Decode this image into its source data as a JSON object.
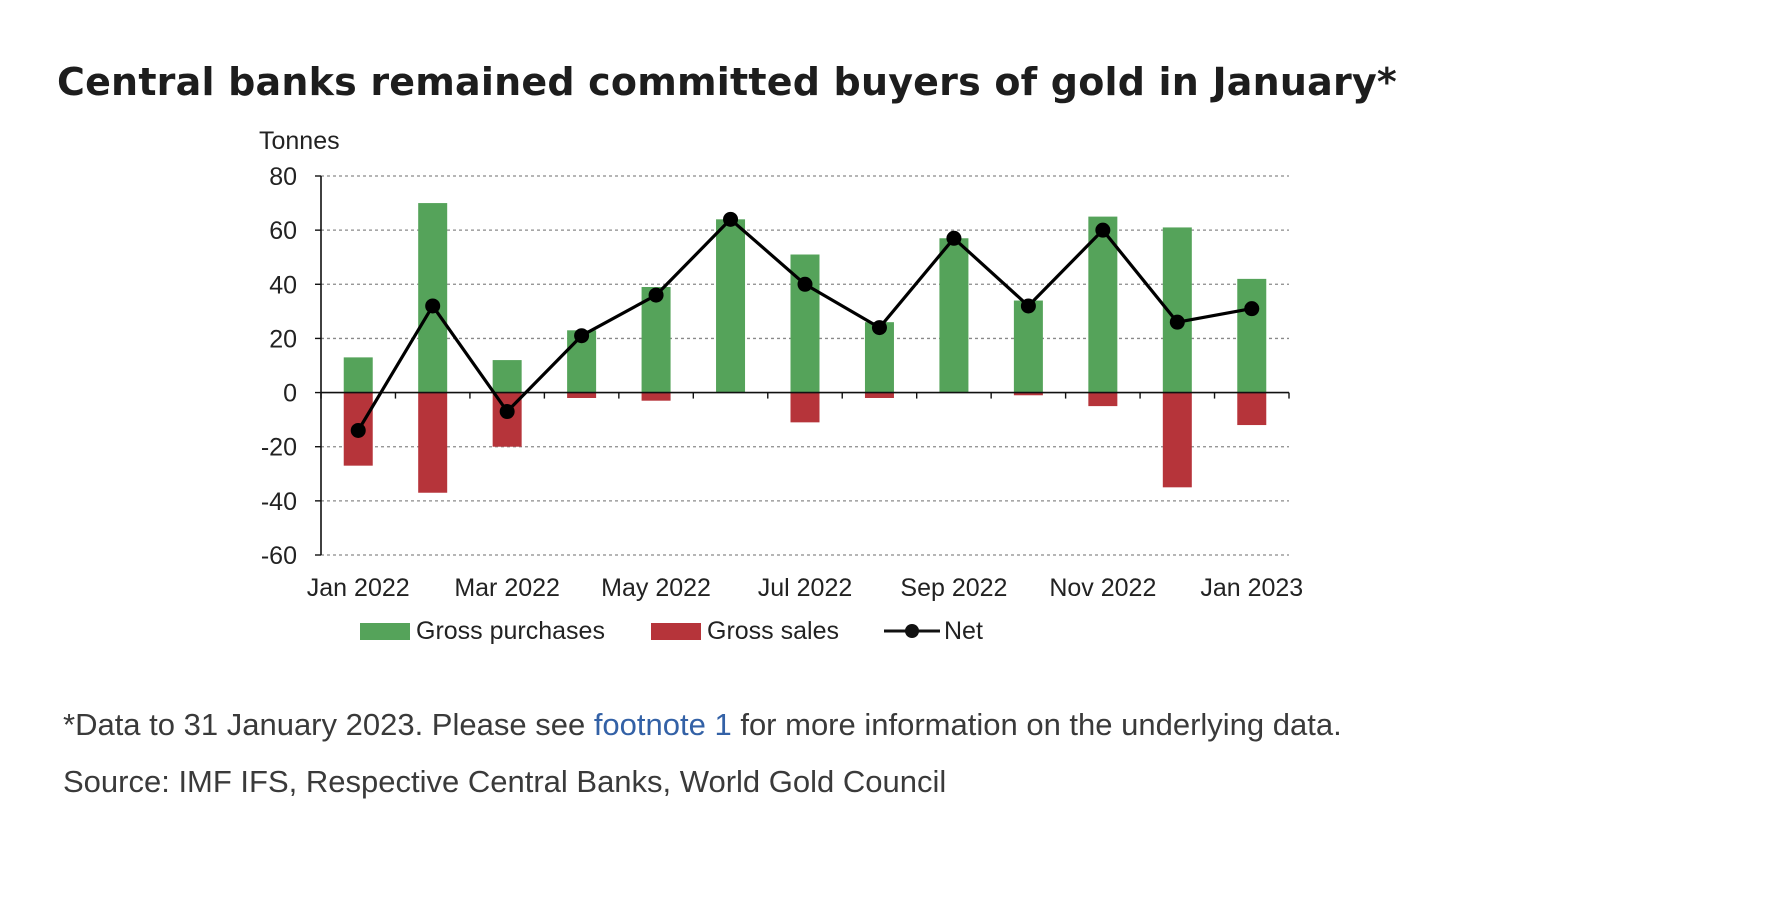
{
  "title": "Central banks remained committed buyers of gold in January*",
  "chart_data": {
    "type": "bar",
    "ylabel": "Tonnes",
    "ylim": [
      -60,
      80
    ],
    "yticks": [
      80,
      60,
      40,
      20,
      0,
      -20,
      -40,
      -60
    ],
    "grid": true,
    "categories": [
      "Jan 2022",
      "Feb 2022",
      "Mar 2022",
      "Apr 2022",
      "May 2022",
      "Jun 2022",
      "Jul 2022",
      "Aug 2022",
      "Sep 2022",
      "Oct 2022",
      "Nov 2022",
      "Dec 2022",
      "Jan 2023"
    ],
    "xtick_labels": [
      "Jan 2022",
      "Mar 2022",
      "May 2022",
      "Jul 2022",
      "Sep 2022",
      "Nov 2022",
      "Jan 2023"
    ],
    "series": [
      {
        "name": "Gross purchases",
        "type": "bar",
        "color": "#55a35a",
        "values": [
          13,
          70,
          12,
          23,
          39,
          64,
          51,
          26,
          57,
          34,
          65,
          61,
          42
        ]
      },
      {
        "name": "Gross sales",
        "type": "bar",
        "color": "#b6343a",
        "values": [
          -27,
          -37,
          -20,
          -2,
          -3,
          0,
          -11,
          -2,
          0,
          -1,
          -5,
          -35,
          -12
        ]
      },
      {
        "name": "Net",
        "type": "line",
        "color": "#000000",
        "values": [
          -14,
          32,
          -7,
          21,
          36,
          64,
          40,
          24,
          57,
          32,
          60,
          26,
          31
        ]
      }
    ],
    "legend": "bottom"
  },
  "notes": {
    "line1_pre": "*Data to 31 January 2023. Please see ",
    "link": "footnote 1",
    "line1_post": " for more information on the underlying data.",
    "source": "Source: IMF IFS, Respective Central Banks, World Gold Council"
  }
}
